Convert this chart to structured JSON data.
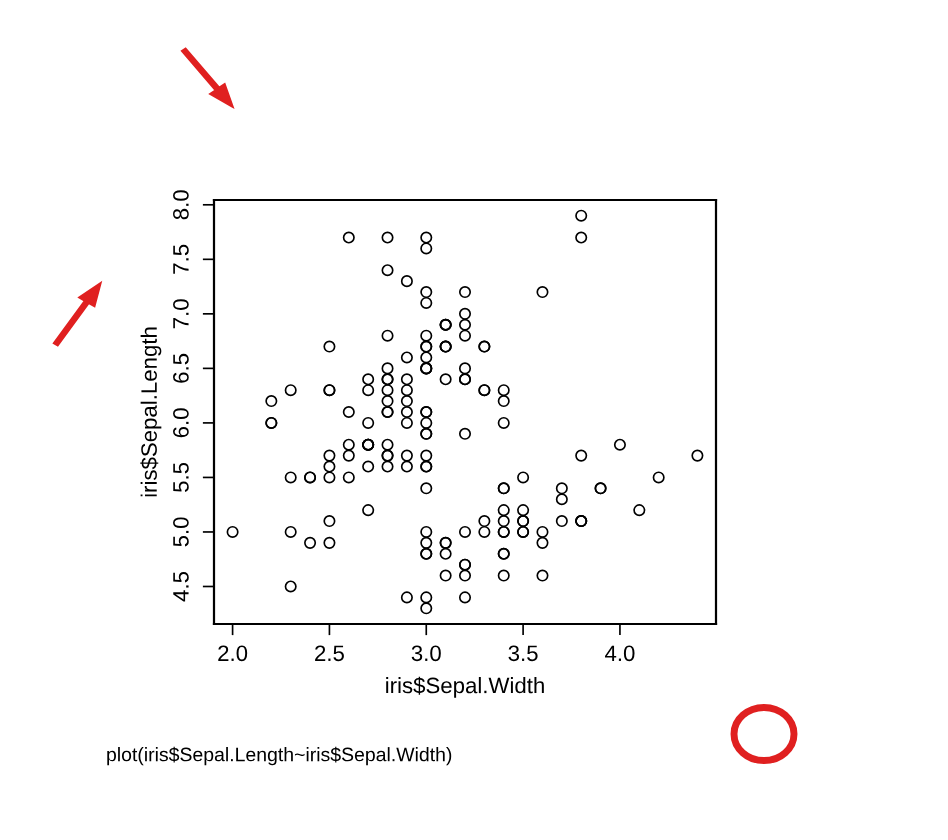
{
  "chart_data": {
    "type": "scatter",
    "xlabel": "iris$Sepal.Width",
    "ylabel": "iris$Sepal.Length",
    "xlim": [
      1.904,
      4.496
    ],
    "ylim": [
      4.156,
      8.044
    ],
    "xticks": [
      {
        "value": 2.0,
        "label": "2.0"
      },
      {
        "value": 2.5,
        "label": "2.5"
      },
      {
        "value": 3.0,
        "label": "3.0"
      },
      {
        "value": 3.5,
        "label": "3.5"
      },
      {
        "value": 4.0,
        "label": "4.0"
      }
    ],
    "yticks": [
      {
        "value": 4.5,
        "label": "4.5"
      },
      {
        "value": 5.0,
        "label": "5.0"
      },
      {
        "value": 5.5,
        "label": "5.5"
      },
      {
        "value": 6.0,
        "label": "6.0"
      },
      {
        "value": 6.5,
        "label": "6.5"
      },
      {
        "value": 7.0,
        "label": "7.0"
      },
      {
        "value": 7.5,
        "label": "7.5"
      },
      {
        "value": 8.0,
        "label": "8.0"
      }
    ],
    "marker": "circle",
    "grid": false,
    "legend": false,
    "annotations": [
      "plot(iris$Sepal.Length~iris$Sepal.Width)"
    ],
    "series": [
      {
        "color": "#000000",
        "x": [
          3.5,
          3.0,
          3.2,
          3.1,
          3.6,
          3.9,
          3.4,
          3.4,
          2.9,
          3.1,
          3.7,
          3.4,
          3.0,
          3.0,
          4.0,
          4.4,
          3.9,
          3.5,
          3.8,
          3.8,
          3.4,
          3.7,
          3.6,
          3.3,
          3.4,
          3.0,
          3.4,
          3.5,
          3.4,
          3.2,
          3.1,
          3.4,
          4.1,
          4.2,
          3.1,
          3.2,
          3.5,
          3.6,
          3.0,
          3.4,
          3.5,
          2.3,
          3.2,
          3.5,
          3.8,
          3.0,
          3.8,
          3.2,
          3.7,
          3.3,
          3.2,
          3.2,
          3.1,
          2.3,
          2.8,
          2.8,
          3.3,
          2.4,
          2.9,
          2.7,
          2.0,
          3.0,
          2.2,
          2.9,
          2.9,
          3.1,
          3.0,
          2.7,
          2.2,
          2.5,
          3.2,
          2.8,
          2.5,
          2.8,
          2.9,
          3.0,
          2.8,
          3.0,
          2.9,
          2.6,
          2.4,
          2.4,
          2.7,
          2.7,
          3.0,
          3.4,
          3.1,
          2.3,
          3.0,
          2.5,
          2.6,
          3.0,
          2.6,
          2.3,
          2.7,
          3.0,
          2.9,
          2.9,
          2.5,
          2.8,
          3.3,
          2.7,
          3.0,
          2.9,
          3.0,
          3.0,
          2.5,
          2.9,
          2.5,
          3.6,
          3.2,
          2.7,
          3.0,
          2.5,
          2.8,
          3.2,
          3.0,
          3.8,
          2.6,
          2.2,
          3.2,
          2.8,
          2.8,
          2.7,
          3.3,
          3.2,
          2.8,
          3.0,
          2.8,
          3.0,
          2.8,
          3.8,
          2.8,
          2.8,
          2.6,
          3.0,
          3.4,
          3.1,
          3.0,
          3.1,
          3.1,
          3.1,
          2.7,
          3.2,
          3.3,
          3.0,
          2.5,
          3.0,
          3.4,
          3.0
        ],
        "values": [
          5.1,
          4.9,
          4.7,
          4.6,
          5.0,
          5.4,
          4.6,
          5.0,
          4.4,
          4.9,
          5.4,
          4.8,
          4.8,
          4.3,
          5.8,
          5.7,
          5.4,
          5.1,
          5.7,
          5.1,
          5.4,
          5.1,
          4.6,
          5.1,
          4.8,
          5.0,
          5.0,
          5.2,
          5.2,
          4.7,
          4.8,
          5.4,
          5.2,
          5.5,
          4.9,
          5.0,
          5.5,
          4.9,
          4.4,
          5.1,
          5.0,
          4.5,
          4.4,
          5.0,
          5.1,
          4.8,
          5.1,
          4.6,
          5.3,
          5.0,
          7.0,
          6.4,
          6.9,
          5.5,
          6.5,
          5.7,
          6.3,
          4.9,
          6.6,
          5.2,
          5.0,
          5.9,
          6.0,
          6.1,
          5.6,
          6.7,
          5.6,
          5.8,
          6.2,
          5.6,
          5.9,
          6.1,
          6.3,
          6.1,
          6.4,
          6.6,
          6.8,
          6.7,
          6.0,
          5.7,
          5.5,
          5.5,
          5.8,
          6.0,
          5.4,
          6.0,
          6.7,
          6.3,
          5.6,
          5.5,
          5.5,
          6.1,
          5.8,
          5.0,
          5.6,
          5.7,
          5.7,
          6.2,
          5.1,
          5.7,
          6.3,
          5.8,
          7.1,
          6.3,
          6.5,
          7.6,
          4.9,
          7.3,
          6.7,
          7.2,
          6.5,
          6.4,
          6.8,
          5.7,
          5.8,
          6.4,
          6.5,
          7.7,
          7.7,
          6.0,
          6.9,
          5.6,
          7.7,
          6.3,
          6.7,
          7.2,
          6.2,
          6.1,
          6.4,
          7.2,
          7.4,
          7.9,
          6.4,
          6.3,
          6.1,
          7.7,
          6.3,
          6.4,
          6.0,
          6.9,
          6.7,
          6.9,
          5.8,
          6.8,
          6.7,
          6.7,
          6.3,
          6.5,
          6.2,
          5.9
        ]
      }
    ]
  }
}
